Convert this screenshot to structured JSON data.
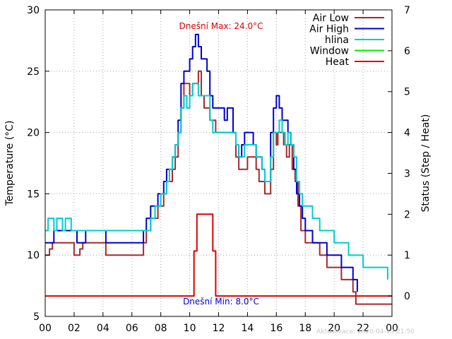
{
  "chart_data": {
    "type": "line",
    "title": "",
    "xlabel": "",
    "ylabel": "Temperature (°C)",
    "y2label": "Status (Step / Heat)",
    "xlim": [
      0,
      24
    ],
    "ylim": [
      5,
      30
    ],
    "y2lim": [
      -0.5,
      7
    ],
    "x_ticks": [
      "00",
      "02",
      "04",
      "06",
      "08",
      "10",
      "12",
      "14",
      "16",
      "18",
      "20",
      "22",
      "00"
    ],
    "x_tick_values": [
      0,
      2,
      4,
      6,
      8,
      10,
      12,
      14,
      16,
      18,
      20,
      22,
      24
    ],
    "y_ticks": [
      5,
      10,
      15,
      20,
      25,
      30
    ],
    "y2_ticks": [
      0,
      1,
      2,
      3,
      4,
      5,
      6,
      7
    ],
    "grid": true,
    "legend_position": "top-right",
    "annotations": {
      "max_label": "Dnešní Max: 24.0°C",
      "min_label": "Dnešní Min: 8.0°C",
      "footer": "Aktualizace: 2020-04-19 21:50"
    },
    "series": [
      {
        "name": "Air Low",
        "color": "#a52a2a",
        "axis": "y",
        "points": [
          [
            0,
            10
          ],
          [
            0.2,
            10
          ],
          [
            0.3,
            10.5
          ],
          [
            0.5,
            11
          ],
          [
            1,
            11
          ],
          [
            1.8,
            11
          ],
          [
            2,
            10
          ],
          [
            2.2,
            10
          ],
          [
            2.4,
            10.5
          ],
          [
            2.6,
            11
          ],
          [
            3,
            11
          ],
          [
            4,
            11
          ],
          [
            4.2,
            10
          ],
          [
            5,
            10
          ],
          [
            6,
            10
          ],
          [
            6.5,
            10
          ],
          [
            6.8,
            11
          ],
          [
            7,
            12
          ],
          [
            7.3,
            13
          ],
          [
            7.6,
            13
          ],
          [
            7.8,
            14
          ],
          [
            8,
            14
          ],
          [
            8.2,
            15
          ],
          [
            8.4,
            16
          ],
          [
            8.6,
            16
          ],
          [
            8.8,
            17
          ],
          [
            9,
            18
          ],
          [
            9.2,
            20
          ],
          [
            9.4,
            22
          ],
          [
            9.6,
            24
          ],
          [
            9.8,
            24
          ],
          [
            10,
            23
          ],
          [
            10.2,
            24
          ],
          [
            10.4,
            24
          ],
          [
            10.6,
            25
          ],
          [
            10.8,
            23
          ],
          [
            11,
            22
          ],
          [
            11.2,
            22
          ],
          [
            11.4,
            21
          ],
          [
            11.6,
            21
          ],
          [
            11.8,
            20
          ],
          [
            12,
            20
          ],
          [
            12.5,
            20
          ],
          [
            12.8,
            20
          ],
          [
            13,
            20
          ],
          [
            13.2,
            18
          ],
          [
            13.4,
            17
          ],
          [
            13.6,
            17
          ],
          [
            13.8,
            17
          ],
          [
            14,
            18
          ],
          [
            14.2,
            18
          ],
          [
            14.4,
            18
          ],
          [
            14.6,
            17
          ],
          [
            14.8,
            16
          ],
          [
            15,
            16
          ],
          [
            15.2,
            15
          ],
          [
            15.4,
            15
          ],
          [
            15.6,
            17
          ],
          [
            15.8,
            20
          ],
          [
            16,
            19
          ],
          [
            16.1,
            20
          ],
          [
            16.3,
            20
          ],
          [
            16.5,
            19
          ],
          [
            16.7,
            18
          ],
          [
            16.9,
            19
          ],
          [
            17.1,
            17
          ],
          [
            17.3,
            16
          ],
          [
            17.5,
            14
          ],
          [
            17.7,
            12
          ],
          [
            18,
            11
          ],
          [
            18.5,
            11
          ],
          [
            19,
            10
          ],
          [
            19.5,
            9
          ],
          [
            20,
            9
          ],
          [
            20.5,
            8
          ],
          [
            21,
            8
          ],
          [
            21.3,
            7
          ],
          [
            21.5,
            6
          ],
          [
            23,
            6
          ],
          [
            24,
            6
          ]
        ]
      },
      {
        "name": "Air High",
        "color": "#0000cd",
        "axis": "y",
        "points": [
          [
            0,
            11
          ],
          [
            0.5,
            11
          ],
          [
            0.6,
            12
          ],
          [
            1.5,
            12
          ],
          [
            2,
            12
          ],
          [
            2.2,
            11
          ],
          [
            2.6,
            11
          ],
          [
            2.8,
            12
          ],
          [
            3.5,
            12
          ],
          [
            4,
            12
          ],
          [
            4.2,
            11
          ],
          [
            5,
            11
          ],
          [
            6,
            11
          ],
          [
            6.5,
            11
          ],
          [
            6.8,
            12
          ],
          [
            7,
            13
          ],
          [
            7.3,
            14
          ],
          [
            7.6,
            14
          ],
          [
            7.8,
            15
          ],
          [
            8,
            15
          ],
          [
            8.2,
            16
          ],
          [
            8.4,
            17
          ],
          [
            8.6,
            17
          ],
          [
            8.8,
            18
          ],
          [
            9,
            19
          ],
          [
            9.2,
            21
          ],
          [
            9.4,
            24
          ],
          [
            9.6,
            25
          ],
          [
            9.8,
            25
          ],
          [
            10,
            26
          ],
          [
            10.2,
            27
          ],
          [
            10.4,
            28
          ],
          [
            10.6,
            27
          ],
          [
            10.8,
            26
          ],
          [
            11,
            26
          ],
          [
            11.2,
            25
          ],
          [
            11.4,
            23
          ],
          [
            11.6,
            22
          ],
          [
            11.8,
            22
          ],
          [
            12,
            22
          ],
          [
            12.2,
            22
          ],
          [
            12.4,
            21
          ],
          [
            12.6,
            22
          ],
          [
            12.8,
            22
          ],
          [
            13,
            20
          ],
          [
            13.2,
            19
          ],
          [
            13.4,
            18
          ],
          [
            13.6,
            19
          ],
          [
            13.8,
            20
          ],
          [
            14,
            20
          ],
          [
            14.2,
            20
          ],
          [
            14.4,
            19
          ],
          [
            14.6,
            18
          ],
          [
            14.8,
            18
          ],
          [
            15,
            17
          ],
          [
            15.2,
            16
          ],
          [
            15.4,
            16
          ],
          [
            15.6,
            20
          ],
          [
            15.8,
            22
          ],
          [
            16,
            23
          ],
          [
            16.2,
            22
          ],
          [
            16.4,
            21
          ],
          [
            16.6,
            21
          ],
          [
            16.8,
            20
          ],
          [
            17,
            19
          ],
          [
            17.2,
            17
          ],
          [
            17.4,
            15
          ],
          [
            17.6,
            14
          ],
          [
            17.8,
            13
          ],
          [
            18,
            12
          ],
          [
            18.5,
            11
          ],
          [
            19,
            11
          ],
          [
            19.5,
            10
          ],
          [
            20,
            10
          ],
          [
            20.5,
            9
          ],
          [
            21,
            9
          ],
          [
            21.3,
            8
          ],
          [
            21.6,
            7
          ]
        ]
      },
      {
        "name": "hlina",
        "color": "#00cccc",
        "axis": "y",
        "points": [
          [
            0,
            12
          ],
          [
            0.2,
            13
          ],
          [
            0.4,
            13
          ],
          [
            0.6,
            12
          ],
          [
            0.8,
            13
          ],
          [
            1,
            13
          ],
          [
            1.2,
            12
          ],
          [
            1.4,
            13
          ],
          [
            1.6,
            13
          ],
          [
            1.8,
            12
          ],
          [
            2,
            12
          ],
          [
            3,
            12
          ],
          [
            4,
            12
          ],
          [
            5,
            12
          ],
          [
            6,
            12
          ],
          [
            6.5,
            12
          ],
          [
            6.8,
            12
          ],
          [
            7,
            12
          ],
          [
            7.3,
            13
          ],
          [
            7.6,
            14
          ],
          [
            7.8,
            14
          ],
          [
            8,
            15
          ],
          [
            8.2,
            15
          ],
          [
            8.4,
            16
          ],
          [
            8.6,
            17
          ],
          [
            8.8,
            18
          ],
          [
            9,
            19
          ],
          [
            9.2,
            20
          ],
          [
            9.4,
            22
          ],
          [
            9.6,
            23
          ],
          [
            9.8,
            22
          ],
          [
            10,
            23
          ],
          [
            10.2,
            24
          ],
          [
            10.4,
            24
          ],
          [
            10.6,
            23
          ],
          [
            10.8,
            23
          ],
          [
            11,
            23
          ],
          [
            11.2,
            23
          ],
          [
            11.4,
            21
          ],
          [
            11.6,
            20
          ],
          [
            12,
            20
          ],
          [
            12.5,
            20
          ],
          [
            12.8,
            20
          ],
          [
            13,
            20
          ],
          [
            13.2,
            19
          ],
          [
            13.4,
            18
          ],
          [
            13.6,
            18
          ],
          [
            13.8,
            19
          ],
          [
            14,
            19
          ],
          [
            14.2,
            19
          ],
          [
            14.4,
            19
          ],
          [
            14.6,
            18
          ],
          [
            14.8,
            18
          ],
          [
            15,
            17
          ],
          [
            15.2,
            16
          ],
          [
            15.4,
            16
          ],
          [
            15.6,
            18
          ],
          [
            15.8,
            20
          ],
          [
            16,
            20
          ],
          [
            16.2,
            21
          ],
          [
            16.4,
            20
          ],
          [
            16.6,
            19
          ],
          [
            16.8,
            20
          ],
          [
            17,
            19
          ],
          [
            17.2,
            18
          ],
          [
            17.4,
            16
          ],
          [
            17.6,
            15
          ],
          [
            17.8,
            14
          ],
          [
            18,
            14
          ],
          [
            18.5,
            13
          ],
          [
            19,
            12
          ],
          [
            19.5,
            12
          ],
          [
            20,
            11
          ],
          [
            20.5,
            11
          ],
          [
            21,
            10
          ],
          [
            21.5,
            10
          ],
          [
            22,
            9
          ],
          [
            22.5,
            9
          ],
          [
            23,
            9
          ],
          [
            23.4,
            9
          ],
          [
            23.5,
            9
          ],
          [
            23.7,
            8
          ]
        ]
      },
      {
        "name": "Window",
        "color": "#00ee00",
        "axis": "y2",
        "points": []
      },
      {
        "name": "Heat",
        "color": "#dd0000",
        "axis": "y2",
        "points": [
          [
            0,
            0
          ],
          [
            10.3,
            0
          ],
          [
            10.3,
            1.1
          ],
          [
            10.5,
            1.1
          ],
          [
            10.5,
            2
          ],
          [
            11.6,
            2
          ],
          [
            11.6,
            1.1
          ],
          [
            11.8,
            1.1
          ],
          [
            11.8,
            0
          ],
          [
            24,
            0
          ]
        ]
      }
    ]
  }
}
